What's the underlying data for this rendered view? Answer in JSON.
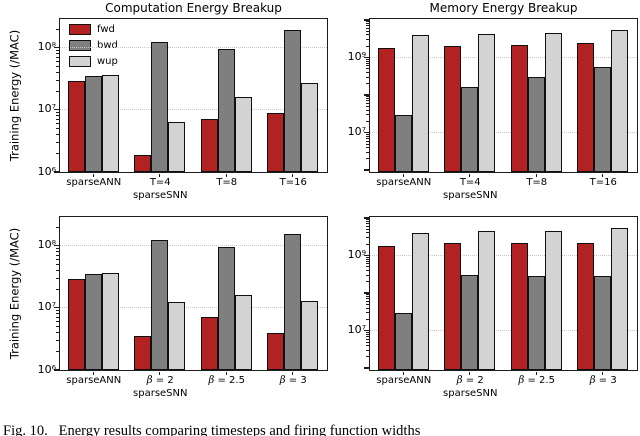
{
  "figure": {
    "ylabel": "Training Energy (/MAC)",
    "caption": "Fig. 10.   Energy results comparing timesteps and firing function widths"
  },
  "legend": {
    "items": [
      {
        "label": "fwd",
        "color": "#b22222"
      },
      {
        "label": "bwd",
        "color": "#7f7f7f"
      },
      {
        "label": "wup",
        "color": "#d3d3d3"
      }
    ]
  },
  "chart_data": [
    {
      "type": "bar",
      "title": "Computation Energy Breakup",
      "yscale": "log",
      "ylabel": "Training Energy (/MAC)",
      "ylim": [
        1000000.0,
        280000000.0
      ],
      "grid": true,
      "legend_position": "upper left",
      "yticks": [
        {
          "value": 1000000.0,
          "label": "10⁶"
        },
        {
          "value": 10000000.0,
          "label": "10⁷"
        },
        {
          "value": 100000000.0,
          "label": "10⁸"
        }
      ],
      "categories": [
        "sparseANN",
        "T=4",
        "T=8",
        "T=16"
      ],
      "group_sublabel": {
        "text": "sparseSNN",
        "group_index": 1
      },
      "series": [
        {
          "name": "fwd",
          "color": "#b22222",
          "values": [
            29000000.0,
            1900000.0,
            7200000.0,
            8900000.0
          ]
        },
        {
          "name": "bwd",
          "color": "#7f7f7f",
          "values": [
            35000000.0,
            125000000.0,
            96000000.0,
            190000000.0
          ]
        },
        {
          "name": "wup",
          "color": "#d3d3d3",
          "values": [
            37000000.0,
            6300000.0,
            16000000.0,
            27000000.0
          ]
        }
      ]
    },
    {
      "type": "bar",
      "title": "Memory Energy Breakup",
      "yscale": "log",
      "ylim": [
        900000.0,
        10000000000.0
      ],
      "grid": true,
      "yticks": [
        {
          "value": 10000000.0,
          "label": "10⁷"
        },
        {
          "value": 1000000000.0,
          "label": "10⁹"
        }
      ],
      "categories": [
        "sparseANN",
        "T=4",
        "T=8",
        "T=16"
      ],
      "group_sublabel": {
        "text": "sparseSNN",
        "group_index": 1
      },
      "series": [
        {
          "name": "fwd",
          "color": "#b22222",
          "values": [
            1800000000.0,
            2000000000.0,
            2200000000.0,
            2400000000.0
          ]
        },
        {
          "name": "bwd",
          "color": "#7f7f7f",
          "values": [
            30000000.0,
            160000000.0,
            300000000.0,
            550000000.0
          ]
        },
        {
          "name": "wup",
          "color": "#d3d3d3",
          "values": [
            3900000000.0,
            4300000000.0,
            4600000000.0,
            5400000000.0
          ]
        }
      ]
    },
    {
      "type": "bar",
      "title": "",
      "yscale": "log",
      "ylabel": "Training Energy (/MAC)",
      "ylim": [
        1000000.0,
        280000000.0
      ],
      "grid": true,
      "yticks": [
        {
          "value": 1000000.0,
          "label": "10⁶"
        },
        {
          "value": 10000000.0,
          "label": "10⁷"
        },
        {
          "value": 100000000.0,
          "label": "10⁸"
        }
      ],
      "categories": [
        "sparseANN",
        "β = 2",
        "β = 2.5",
        "β = 3"
      ],
      "group_sublabel": {
        "text": "sparseSNN",
        "group_index": 1
      },
      "series": [
        {
          "name": "fwd",
          "color": "#b22222",
          "values": [
            29000000.0,
            3500000.0,
            7200000.0,
            4000000.0
          ]
        },
        {
          "name": "bwd",
          "color": "#7f7f7f",
          "values": [
            35000000.0,
            125000000.0,
            96000000.0,
            155000000.0
          ]
        },
        {
          "name": "wup",
          "color": "#d3d3d3",
          "values": [
            37000000.0,
            12500000.0,
            16000000.0,
            13000000.0
          ]
        }
      ]
    },
    {
      "type": "bar",
      "title": "",
      "yscale": "log",
      "ylim": [
        900000.0,
        10000000000.0
      ],
      "grid": true,
      "yticks": [
        {
          "value": 10000000.0,
          "label": "10⁷"
        },
        {
          "value": 1000000000.0,
          "label": "10⁹"
        }
      ],
      "categories": [
        "sparseANN",
        "β = 2",
        "β = 2.5",
        "β = 3"
      ],
      "group_sublabel": {
        "text": "sparseSNN",
        "group_index": 1
      },
      "series": [
        {
          "name": "fwd",
          "color": "#b22222",
          "values": [
            1800000000.0,
            2200000000.0,
            2200000000.0,
            2200000000.0
          ]
        },
        {
          "name": "bwd",
          "color": "#7f7f7f",
          "values": [
            30000000.0,
            300000000.0,
            290000000.0,
            290000000.0
          ]
        },
        {
          "name": "wup",
          "color": "#d3d3d3",
          "values": [
            3900000000.0,
            4400000000.0,
            4600000000.0,
            5500000000.0
          ]
        }
      ]
    }
  ]
}
